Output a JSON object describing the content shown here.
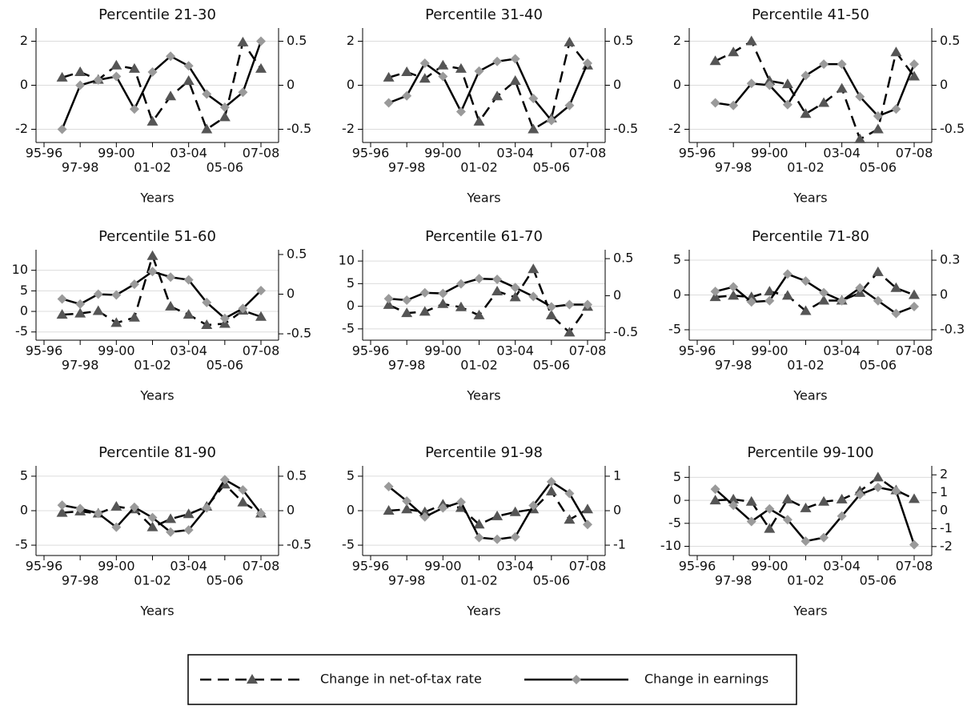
{
  "chart_data": [
    {
      "type": "line",
      "title": "Percentile 21-30",
      "x_label": "Years",
      "categories": [
        "95-96",
        null,
        "97-98",
        null,
        "99-00",
        null,
        "01-02",
        null,
        "03-04",
        null,
        "05-06",
        null,
        "07-08"
      ],
      "ylim": [
        -2.6,
        2.6
      ],
      "yticks": [
        -2,
        0,
        2
      ],
      "y2lim": [
        -0.65,
        0.65
      ],
      "y2ticks": [
        -0.5,
        0,
        0.5
      ],
      "grid": true,
      "series": [
        {
          "values": [
            null,
            0.35,
            0.6,
            0.25,
            0.9,
            0.75,
            -1.65,
            -0.5,
            0.2,
            -2.0,
            -1.45,
            1.95,
            0.75
          ],
          "color": "#000000",
          "marker": "triangle",
          "marker_color": "#555555",
          "dash": true
        },
        {
          "values": [
            null,
            -0.5,
            0.0,
            0.06,
            0.1,
            -0.27,
            0.15,
            0.33,
            0.22,
            -0.1,
            -0.25,
            -0.08,
            0.5
          ],
          "axis": "y2",
          "color": "#000000",
          "marker": "diamond",
          "marker_color": "#9a9a9a",
          "dash": false
        }
      ]
    },
    {
      "type": "line",
      "title": "Percentile 31-40",
      "x_label": "Years",
      "categories": [
        "95-96",
        null,
        "97-98",
        null,
        "99-00",
        null,
        "01-02",
        null,
        "03-04",
        null,
        "05-06",
        null,
        "07-08"
      ],
      "ylim": [
        -2.6,
        2.6
      ],
      "yticks": [
        -2,
        0,
        2
      ],
      "y2lim": [
        -0.65,
        0.65
      ],
      "y2ticks": [
        -0.5,
        0,
        0.5
      ],
      "grid": true,
      "series": [
        {
          "values": [
            null,
            0.35,
            0.6,
            0.3,
            0.9,
            0.75,
            -1.65,
            -0.5,
            0.2,
            -2.0,
            -1.5,
            1.95,
            0.9
          ],
          "color": "#000000",
          "marker": "triangle",
          "marker_color": "#555555",
          "dash": true
        },
        {
          "values": [
            null,
            -0.2,
            -0.12,
            0.25,
            0.1,
            -0.3,
            0.16,
            0.27,
            0.3,
            -0.15,
            -0.4,
            -0.23,
            0.25
          ],
          "axis": "y2",
          "color": "#000000",
          "marker": "diamond",
          "marker_color": "#9a9a9a",
          "dash": false
        }
      ]
    },
    {
      "type": "line",
      "title": "Percentile 41-50",
      "x_label": "Years",
      "categories": [
        "95-96",
        null,
        "97-98",
        null,
        "99-00",
        null,
        "01-02",
        null,
        "03-04",
        null,
        "05-06",
        null,
        "07-08"
      ],
      "ylim": [
        -2.6,
        2.6
      ],
      "yticks": [
        -2,
        0,
        2
      ],
      "y2lim": [
        -0.65,
        0.65
      ],
      "y2ticks": [
        -0.5,
        0,
        0.5
      ],
      "grid": true,
      "series": [
        {
          "values": [
            null,
            1.1,
            1.5,
            2.0,
            0.2,
            0.05,
            -1.3,
            -0.8,
            -0.15,
            -2.45,
            -2.0,
            1.5,
            0.4
          ],
          "color": "#000000",
          "marker": "triangle",
          "marker_color": "#555555",
          "dash": true
        },
        {
          "values": [
            null,
            -0.2,
            -0.23,
            0.02,
            0.0,
            -0.22,
            0.11,
            0.24,
            0.24,
            -0.13,
            -0.35,
            -0.27,
            0.24
          ],
          "axis": "y2",
          "color": "#000000",
          "marker": "diamond",
          "marker_color": "#9a9a9a",
          "dash": false
        }
      ]
    },
    {
      "type": "line",
      "title": "Percentile 51-60",
      "x_label": "Years",
      "categories": [
        "95-96",
        null,
        "97-98",
        null,
        "99-00",
        null,
        "01-02",
        null,
        "03-04",
        null,
        "05-06",
        null,
        "07-08"
      ],
      "ylim": [
        -7,
        15
      ],
      "yticks": [
        -5,
        0,
        5,
        10
      ],
      "y2lim": [
        -0.58,
        0.56
      ],
      "y2ticks": [
        -0.5,
        0,
        0.5
      ],
      "grid": true,
      "series": [
        {
          "values": [
            null,
            -0.8,
            -0.5,
            0.1,
            -2.8,
            -1.5,
            13.5,
            1.2,
            -0.8,
            -3.3,
            -3.0,
            0.2,
            -1.3
          ],
          "color": "#000000",
          "marker": "triangle",
          "marker_color": "#555555",
          "dash": true
        },
        {
          "values": [
            null,
            -0.06,
            -0.125,
            0.0,
            -0.01,
            0.125,
            0.285,
            0.215,
            0.18,
            -0.105,
            -0.305,
            -0.18,
            0.045
          ],
          "axis": "y2",
          "color": "#000000",
          "marker": "diamond",
          "marker_color": "#9a9a9a",
          "dash": false
        }
      ]
    },
    {
      "type": "line",
      "title": "Percentile 61-70",
      "x_label": "Years",
      "categories": [
        "95-96",
        null,
        "97-98",
        null,
        "99-00",
        null,
        "01-02",
        null,
        "03-04",
        null,
        "05-06",
        null,
        "07-08"
      ],
      "ylim": [
        -7.5,
        12.5
      ],
      "yticks": [
        -5,
        0,
        5,
        10
      ],
      "y2lim": [
        -0.6,
        0.62
      ],
      "y2ticks": [
        -0.5,
        0,
        0.5
      ],
      "grid": true,
      "series": [
        {
          "values": [
            null,
            0.3,
            -1.5,
            -1.2,
            0.5,
            -0.2,
            -2.0,
            3.3,
            2.0,
            8.2,
            -2.0,
            -5.8,
            -0.1
          ],
          "color": "#000000",
          "marker": "triangle",
          "marker_color": "#555555",
          "dash": true
        },
        {
          "values": [
            null,
            -0.04,
            -0.06,
            0.04,
            0.03,
            0.16,
            0.23,
            0.22,
            0.11,
            -0.01,
            -0.15,
            -0.12,
            -0.12
          ],
          "axis": "y2",
          "color": "#000000",
          "marker": "diamond",
          "marker_color": "#9a9a9a",
          "dash": false
        }
      ]
    },
    {
      "type": "line",
      "title": "Percentile 71-80",
      "x_label": "Years",
      "categories": [
        "95-96",
        null,
        "97-98",
        null,
        "99-00",
        null,
        "01-02",
        null,
        "03-04",
        null,
        "05-06",
        null,
        "07-08"
      ],
      "ylim": [
        -6.5,
        6.5
      ],
      "yticks": [
        -5,
        0,
        5
      ],
      "y2lim": [
        -0.39,
        0.39
      ],
      "y2ticks": [
        -0.3,
        0,
        0.3
      ],
      "grid": true,
      "series": [
        {
          "values": [
            null,
            -0.3,
            -0.1,
            -0.3,
            0.5,
            -0.1,
            -2.3,
            -0.8,
            -0.8,
            0.3,
            3.3,
            1.0,
            0.0
          ],
          "color": "#000000",
          "marker": "triangle",
          "marker_color": "#555555",
          "dash": true
        },
        {
          "values": [
            null,
            0.03,
            0.07,
            -0.06,
            -0.05,
            0.18,
            0.12,
            0.02,
            -0.05,
            0.06,
            -0.05,
            -0.16,
            -0.1
          ],
          "axis": "y2",
          "color": "#000000",
          "marker": "diamond",
          "marker_color": "#9a9a9a",
          "dash": false
        }
      ]
    },
    {
      "type": "line",
      "title": "Percentile 81-90",
      "x_label": "Years",
      "categories": [
        "95-96",
        null,
        "97-98",
        null,
        "99-00",
        null,
        "01-02",
        null,
        "03-04",
        null,
        "05-06",
        null,
        "07-08"
      ],
      "ylim": [
        -6.5,
        6.5
      ],
      "yticks": [
        -5,
        0,
        5
      ],
      "y2lim": [
        -0.65,
        0.65
      ],
      "y2ticks": [
        -0.5,
        0,
        0.5
      ],
      "grid": true,
      "series": [
        {
          "values": [
            null,
            -0.3,
            -0.1,
            -0.4,
            0.6,
            0.2,
            -2.4,
            -1.2,
            -0.5,
            0.6,
            3.8,
            1.2,
            -0.4
          ],
          "color": "#000000",
          "marker": "triangle",
          "marker_color": "#555555",
          "dash": true
        },
        {
          "values": [
            null,
            0.08,
            0.03,
            -0.04,
            -0.24,
            0.05,
            -0.1,
            -0.31,
            -0.28,
            0.04,
            0.45,
            0.3,
            -0.04
          ],
          "axis": "y2",
          "color": "#000000",
          "marker": "diamond",
          "marker_color": "#9a9a9a",
          "dash": false
        }
      ]
    },
    {
      "type": "line",
      "title": "Percentile 91-98",
      "x_label": "Years",
      "categories": [
        "95-96",
        null,
        "97-98",
        null,
        "99-00",
        null,
        "01-02",
        null,
        "03-04",
        null,
        "05-06",
        null,
        "07-08"
      ],
      "ylim": [
        -6.5,
        6.5
      ],
      "yticks": [
        -5,
        0,
        5
      ],
      "y2lim": [
        -1.3,
        1.3
      ],
      "y2ticks": [
        -1,
        0,
        1
      ],
      "grid": true,
      "series": [
        {
          "values": [
            null,
            0.0,
            0.2,
            -0.2,
            0.9,
            0.4,
            -2.0,
            -0.8,
            -0.2,
            0.2,
            2.8,
            -1.3,
            0.2
          ],
          "color": "#000000",
          "marker": "triangle",
          "marker_color": "#555555",
          "dash": true
        },
        {
          "values": [
            null,
            0.7,
            0.28,
            -0.18,
            0.08,
            0.25,
            -0.78,
            -0.83,
            -0.76,
            0.15,
            0.84,
            0.5,
            -0.4
          ],
          "axis": "y2",
          "color": "#000000",
          "marker": "diamond",
          "marker_color": "#9a9a9a",
          "dash": false
        }
      ]
    },
    {
      "type": "line",
      "title": "Percentile 99-100",
      "x_label": "Years",
      "categories": [
        "95-96",
        null,
        "97-98",
        null,
        "99-00",
        null,
        "01-02",
        null,
        "03-04",
        null,
        "05-06",
        null,
        "07-08"
      ],
      "ylim": [
        -12,
        7.5
      ],
      "yticks": [
        -10,
        -5,
        0,
        5
      ],
      "y2lim": [
        -2.5,
        2.5
      ],
      "y2ticks": [
        -2,
        -1,
        0,
        1,
        2
      ],
      "grid": true,
      "series": [
        {
          "values": [
            null,
            0.0,
            0.2,
            -0.3,
            -6.2,
            0.2,
            -1.7,
            -0.3,
            0.2,
            2.0,
            5.0,
            2.2,
            0.3
          ],
          "color": "#000000",
          "marker": "triangle",
          "marker_color": "#555555",
          "dash": true
        },
        {
          "values": [
            null,
            1.2,
            0.3,
            -0.6,
            0.1,
            -0.5,
            -1.7,
            -1.5,
            -0.3,
            0.9,
            1.3,
            1.1,
            -1.9
          ],
          "axis": "y2",
          "color": "#000000",
          "marker": "diamond",
          "marker_color": "#9a9a9a",
          "dash": false
        }
      ]
    }
  ],
  "legend": [
    {
      "name": "Change in net-of-tax rate",
      "color": "#000000",
      "marker": "triangle",
      "marker_color": "#555555",
      "dash": true
    },
    {
      "name": "Change in earnings",
      "color": "#000000",
      "marker": "diamond",
      "marker_color": "#9a9a9a",
      "dash": false
    }
  ]
}
